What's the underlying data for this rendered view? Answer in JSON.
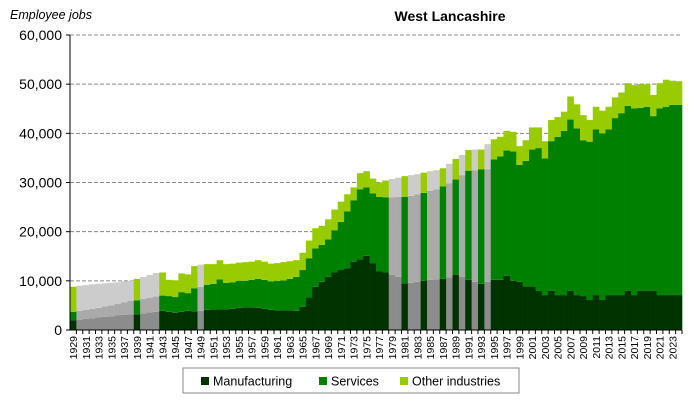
{
  "chart_data": {
    "type": "bar",
    "stacked": true,
    "title": "West Lancashire",
    "ylabel": "Employee jobs",
    "xlabel": "",
    "ylim": [
      0,
      60000
    ],
    "yticks": [
      "0",
      "10,000",
      "20,000",
      "30,000",
      "40,000",
      "50,000",
      "60,000"
    ],
    "grid": "horizontal dashed",
    "legend_position": "bottom",
    "x_start": 1929,
    "x_end": 2024,
    "estimated_years": [
      1930,
      1931,
      1932,
      1933,
      1934,
      1935,
      1936,
      1937,
      1938,
      1940,
      1941,
      1942,
      1949,
      1979,
      1980,
      1982,
      1983,
      1985,
      1986,
      1988,
      1990,
      1992,
      1994
    ],
    "series": [
      {
        "name": "Manufacturing",
        "color": "#003300",
        "estimated_color": "#8c8c8c",
        "values": [
          2000,
          2100,
          2250,
          2400,
          2550,
          2700,
          2800,
          2950,
          3100,
          3200,
          3200,
          3400,
          3600,
          3700,
          3900,
          3700,
          3500,
          3700,
          3900,
          3800,
          3900,
          4100,
          4200,
          4200,
          4200,
          4300,
          4500,
          4600,
          4600,
          4500,
          4300,
          4100,
          4000,
          4000,
          4000,
          3900,
          4700,
          6600,
          8800,
          9800,
          10800,
          11700,
          12200,
          12500,
          13900,
          14400,
          15100,
          13600,
          11900,
          11700,
          11200,
          10800,
          9500,
          9600,
          9800,
          10000,
          10200,
          10300,
          10400,
          10700,
          11200,
          10800,
          10200,
          9800,
          9400,
          9800,
          10200,
          10200,
          11000,
          10000,
          9800,
          8900,
          8900,
          8000,
          7100,
          8000,
          7100,
          7100,
          8000,
          7100,
          6900,
          6100,
          7100,
          6100,
          7100,
          7100,
          7100,
          8000,
          7100,
          8000,
          8000,
          8000,
          7100,
          7100,
          7100,
          7100
        ]
      },
      {
        "name": "Services",
        "color": "#008000",
        "estimated_color": "#aaaaaa",
        "values": [
          1700,
          1800,
          1850,
          1900,
          1950,
          2100,
          2200,
          2350,
          2500,
          2700,
          2800,
          2900,
          2900,
          3100,
          3100,
          3200,
          3200,
          4000,
          3600,
          4700,
          4900,
          5100,
          5200,
          6100,
          5400,
          5400,
          5500,
          5400,
          5600,
          5900,
          5900,
          5800,
          6000,
          6100,
          6400,
          6900,
          7500,
          8000,
          7800,
          7500,
          7600,
          8600,
          9800,
          11600,
          12500,
          14200,
          13900,
          14200,
          15200,
          15300,
          15800,
          16300,
          17600,
          17700,
          17800,
          17900,
          18100,
          18300,
          18800,
          19100,
          19400,
          20700,
          22200,
          22700,
          23300,
          22900,
          24500,
          25100,
          25500,
          26300,
          23800,
          25500,
          27800,
          29000,
          27800,
          30400,
          32200,
          33400,
          34800,
          33900,
          31700,
          32200,
          33700,
          33900,
          33700,
          36000,
          37000,
          37600,
          38000,
          37200,
          37400,
          35500,
          38000,
          38300,
          38700,
          38700
        ]
      },
      {
        "name": "Other industries",
        "color": "#99cc00",
        "estimated_color": "#cccccc",
        "values": [
          5100,
          5100,
          5000,
          5000,
          4900,
          4700,
          4600,
          4400,
          4300,
          4100,
          4400,
          4500,
          4700,
          4800,
          4700,
          3300,
          3400,
          3800,
          3800,
          4500,
          4500,
          4200,
          4000,
          3900,
          3800,
          3800,
          3700,
          3800,
          3700,
          3800,
          3700,
          3600,
          3600,
          3700,
          3600,
          3400,
          3500,
          3600,
          4100,
          3900,
          4100,
          4200,
          4100,
          3500,
          2600,
          3300,
          3300,
          3000,
          2900,
          3400,
          3700,
          3900,
          4200,
          4200,
          4100,
          4100,
          4000,
          3900,
          3700,
          4000,
          4200,
          4100,
          4200,
          4200,
          4000,
          5100,
          4100,
          4000,
          4000,
          4000,
          3800,
          4200,
          4500,
          4200,
          3500,
          4300,
          4000,
          3900,
          4700,
          4900,
          5100,
          4400,
          4600,
          4600,
          4600,
          4200,
          4200,
          4600,
          4700,
          4800,
          4600,
          4300,
          5100,
          5500,
          4900,
          4800
        ]
      }
    ]
  }
}
